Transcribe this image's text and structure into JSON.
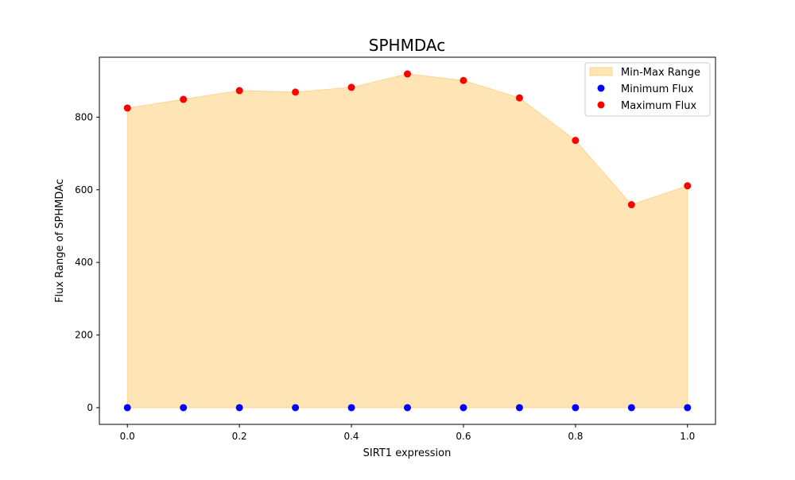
{
  "chart_data": {
    "type": "area",
    "title": "SPHMDAc",
    "xlabel": "SIRT1 expression",
    "ylabel": "Flux Range of SPHMDAc",
    "x": [
      0.0,
      0.1,
      0.2,
      0.3,
      0.4,
      0.5,
      0.6,
      0.7,
      0.8,
      0.9,
      1.0
    ],
    "xlim": [
      -0.05,
      1.05
    ],
    "ylim": [
      -46,
      965
    ],
    "xticks": [
      0.0,
      0.2,
      0.4,
      0.6,
      0.8,
      1.0
    ],
    "xtick_labels": [
      "0.0",
      "0.2",
      "0.4",
      "0.6",
      "0.8",
      "1.0"
    ],
    "yticks": [
      0,
      200,
      400,
      600,
      800
    ],
    "ytick_labels": [
      "0",
      "200",
      "400",
      "600",
      "800"
    ],
    "grid": false,
    "legend_position": "top-right",
    "series": [
      {
        "name": "Min-Max Range",
        "kind": "fill_between",
        "color": "#ffe4b5",
        "edge_color": "#ffd591",
        "lower": [
          0,
          0,
          0,
          0,
          0,
          0,
          0,
          0,
          0,
          0,
          0
        ],
        "upper": [
          825,
          849,
          873,
          869,
          882,
          919,
          901,
          853,
          736,
          559,
          611
        ]
      },
      {
        "name": "Minimum Flux",
        "kind": "scatter",
        "color": "#0000ff",
        "values": [
          0,
          0,
          0,
          0,
          0,
          0,
          0,
          0,
          0,
          0,
          0
        ]
      },
      {
        "name": "Maximum Flux",
        "kind": "scatter",
        "color": "#ff0000",
        "values": [
          825,
          849,
          873,
          869,
          882,
          919,
          901,
          853,
          736,
          559,
          611
        ]
      }
    ]
  }
}
